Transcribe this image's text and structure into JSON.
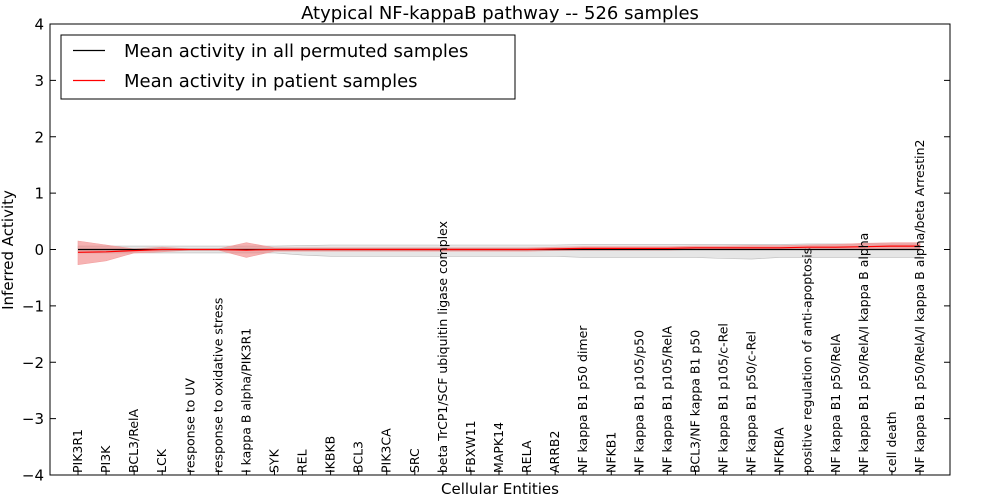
{
  "chart_data": {
    "type": "line",
    "title": "Atypical NF-kappaB pathway -- 526 samples",
    "xlabel": "Cellular Entities",
    "ylabel": "Inferred Activity",
    "ylim": [
      -4,
      4
    ],
    "yticks": [
      "−4",
      "−3",
      "−2",
      "−1",
      "0",
      "1",
      "2",
      "3",
      "4"
    ],
    "legend_position": "upper-left",
    "colors": {
      "permuted": "#000000",
      "patient": "#ff0000",
      "patient_band": "#f08080",
      "permuted_band": "#c8c8c8"
    },
    "categories": [
      "PIK3R1",
      "PI3K",
      "BCL3/RelA",
      "LCK",
      "response to UV",
      "response to oxidative stress",
      "I kappa B alpha/PIK3R1",
      "SYK",
      "REL",
      "IKBKB",
      "BCL3",
      "PIK3CA",
      "SRC",
      "beta TrCP1/SCF ubiquitin ligase complex",
      "FBXW11",
      "MAPK14",
      "RELA",
      "ARRB2",
      "NF kappa B1 p50 dimer",
      "NFKB1",
      "NF kappa B1 p105/p50",
      "NF kappa B1 p105/RelA",
      "BCL3/NF kappa B1 p50",
      "NF kappa B1 p105/c-Rel",
      "NF kappa B1 p50/c-Rel",
      "NFKBIA",
      "positive regulation of anti-apoptosis",
      "NF kappa B1 p50/RelA",
      "NF kappa B1 p50/RelA/I kappa B alpha",
      "cell death",
      "NF kappa B1 p50/RelA/I kappa B alpha/beta Arrestin2"
    ],
    "series": [
      {
        "name": "Mean activity in all permuted samples",
        "values": [
          0,
          0,
          0,
          0,
          0,
          0,
          0,
          0,
          0,
          0,
          0,
          0,
          0,
          0,
          0,
          0,
          0,
          0,
          0,
          0,
          0,
          0,
          0,
          0,
          0,
          0,
          0,
          0,
          0,
          0,
          0
        ],
        "band_upper": [
          0.06,
          0.06,
          0.06,
          0.06,
          0.06,
          0.06,
          0.06,
          0.06,
          0.07,
          0.08,
          0.08,
          0.08,
          0.08,
          0.08,
          0.08,
          0.08,
          0.08,
          0.08,
          0.09,
          0.09,
          0.09,
          0.09,
          0.09,
          0.09,
          0.09,
          0.09,
          0.1,
          0.1,
          0.1,
          0.1,
          0.1
        ],
        "band_lower": [
          -0.06,
          -0.06,
          -0.06,
          -0.06,
          -0.06,
          -0.06,
          -0.06,
          -0.06,
          -0.1,
          -0.12,
          -0.12,
          -0.12,
          -0.12,
          -0.12,
          -0.12,
          -0.12,
          -0.12,
          -0.12,
          -0.14,
          -0.14,
          -0.14,
          -0.14,
          -0.14,
          -0.16,
          -0.17,
          -0.14,
          -0.14,
          -0.14,
          -0.14,
          -0.14,
          -0.14
        ]
      },
      {
        "name": "Mean activity in patient samples",
        "values": [
          -0.05,
          -0.04,
          -0.02,
          0,
          0,
          0,
          -0.01,
          0,
          0,
          0,
          0,
          0,
          0,
          0,
          0,
          0,
          0,
          0.01,
          0.02,
          0.02,
          0.02,
          0.02,
          0.03,
          0.03,
          0.03,
          0.03,
          0.04,
          0.04,
          0.05,
          0.06,
          0.06
        ],
        "band_upper": [
          0.15,
          0.08,
          0.01,
          0.04,
          0.01,
          0.01,
          0.12,
          0.03,
          0.03,
          0.03,
          0.03,
          0.03,
          0.03,
          0.03,
          0.03,
          0.03,
          0.03,
          0.04,
          0.05,
          0.05,
          0.05,
          0.05,
          0.06,
          0.06,
          0.07,
          0.07,
          0.08,
          0.09,
          0.11,
          0.12,
          0.12
        ],
        "band_lower": [
          -0.27,
          -0.2,
          -0.06,
          -0.04,
          -0.01,
          -0.01,
          -0.14,
          -0.03,
          -0.03,
          -0.03,
          -0.03,
          -0.03,
          -0.03,
          -0.03,
          -0.03,
          -0.03,
          -0.03,
          -0.02,
          -0.01,
          -0.01,
          -0.01,
          -0.01,
          0,
          0,
          0,
          0,
          0,
          0,
          0,
          0.01,
          0.01
        ]
      }
    ]
  }
}
